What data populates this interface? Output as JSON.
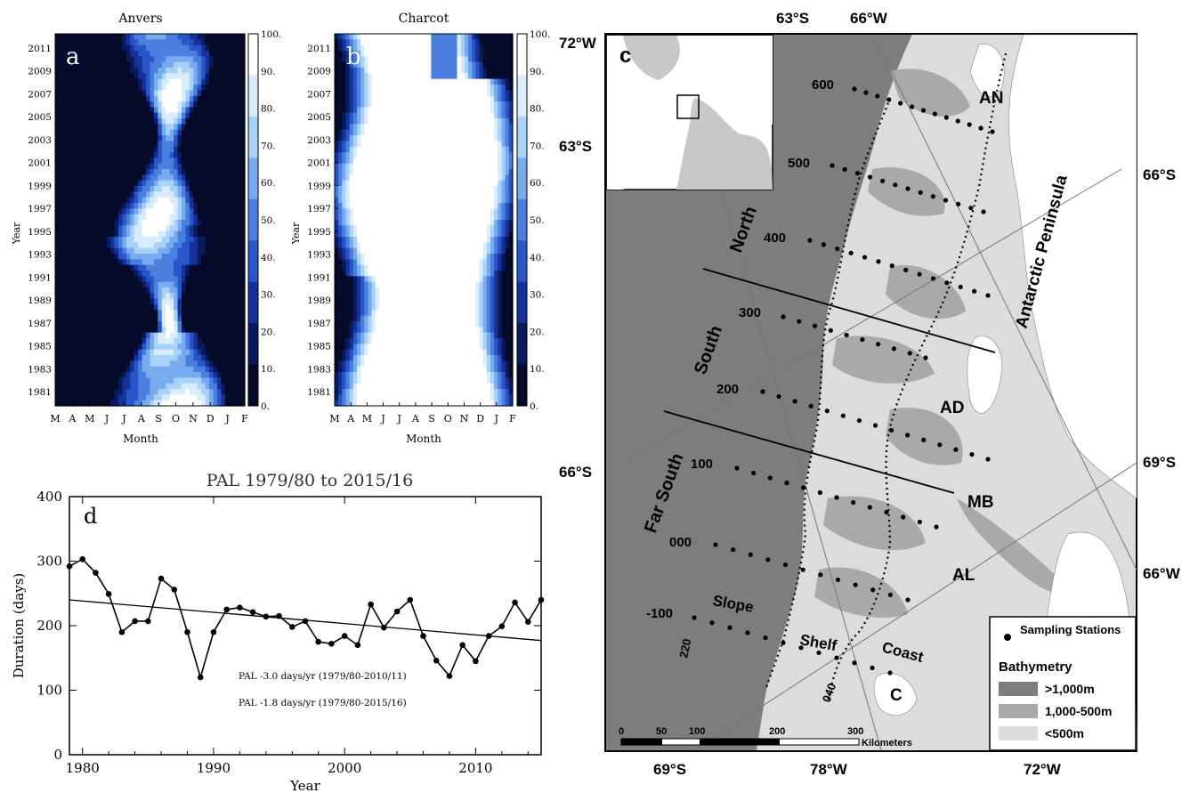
{
  "panels": {
    "a": {
      "letter": "a",
      "title": "Anvers",
      "xlabel": "Month",
      "ylabel": "Year",
      "months": [
        "M",
        "A",
        "M",
        "J",
        "J",
        "A",
        "S",
        "O",
        "N",
        "D",
        "J",
        "F"
      ],
      "years": [
        "2011",
        "2009",
        "2007",
        "2005",
        "2003",
        "2001",
        "1999",
        "1997",
        "1995",
        "1993",
        "1991",
        "1989",
        "1987",
        "1985",
        "1983",
        "1981"
      ],
      "colorbar_ticks": [
        "100.",
        "90.",
        "80.",
        "70.",
        "60.",
        "50.",
        "40.",
        "30.",
        "20.",
        "10.",
        "0."
      ]
    },
    "b": {
      "letter": "b",
      "title": "Charcot",
      "xlabel": "Month",
      "ylabel": "Year",
      "months": [
        "M",
        "A",
        "M",
        "J",
        "J",
        "A",
        "S",
        "O",
        "N",
        "D",
        "J",
        "F"
      ],
      "years": [
        "2011",
        "2009",
        "2007",
        "2005",
        "2003",
        "2001",
        "1999",
        "1997",
        "1995",
        "1993",
        "1991",
        "1989",
        "1987",
        "1985",
        "1983",
        "1981"
      ],
      "colorbar_ticks": [
        "100.",
        "90.",
        "80.",
        "70.",
        "60.",
        "50.",
        "40.",
        "30.",
        "20.",
        "10.",
        "0."
      ]
    },
    "c": {
      "letter": "c",
      "lat_labels": [
        "63°S",
        "66°S",
        "69°S"
      ],
      "lon_labels": [
        "66°W",
        "72°W",
        "78°W"
      ],
      "edge_labels": {
        "top_left": "63°S",
        "top_right": "66°W",
        "left_upper_lon": "72°W",
        "left_upper_lat": "63°S",
        "left_lower_lat": "66°S",
        "right_upper_lat": "66°S",
        "right_lower_lat": "69°S",
        "right_lower_lon": "66°W",
        "bottom_1": "69°S",
        "bottom_2": "78°W",
        "bottom_3": "72°W"
      },
      "grid_lines": [
        "600",
        "500",
        "400",
        "300",
        "200",
        "100",
        "000",
        "-100"
      ],
      "regions": [
        "North",
        "South",
        "Far South"
      ],
      "zones": [
        "Slope",
        "Shelf",
        "Coast"
      ],
      "places": [
        "AN",
        "AD",
        "MB",
        "AL",
        "C"
      ],
      "peninsula_label": "Antarctic Peninsula",
      "contour_labels": [
        "220",
        "040"
      ],
      "scale_ticks": [
        "0",
        "50",
        "100",
        "200",
        "300"
      ],
      "scale_unit": "Kilometers",
      "legend": {
        "sampling_label": "Sampling Stations",
        "bathymetry_title": "Bathymetry",
        "items": [
          {
            "label": ">1,000m",
            "color": "#7d7d7d"
          },
          {
            "label": "1,000-500m",
            "color": "#a9a9a9"
          },
          {
            "label": "<500m",
            "color": "#dcdcdc"
          }
        ]
      }
    }
  },
  "chart_data": [
    {
      "type": "heatmap",
      "title": "Anvers",
      "xlabel": "Month",
      "ylabel": "Year",
      "x": [
        "M",
        "A",
        "M",
        "J",
        "J",
        "A",
        "S",
        "O",
        "N",
        "D",
        "J",
        "F"
      ],
      "y_range": [
        1979,
        2012
      ],
      "z_range": [
        0,
        100
      ],
      "colorbar_ticks": [
        100,
        90,
        80,
        70,
        60,
        50,
        40,
        30,
        20,
        10,
        0
      ],
      "colors": [
        "#050a2a",
        "#0a1a5e",
        "#14329a",
        "#2856c8",
        "#4a7fe0",
        "#78aaf0",
        "#a8d2f8",
        "#d8ecfc",
        "#ffffff"
      ]
    },
    {
      "type": "heatmap",
      "title": "Charcot",
      "xlabel": "Month",
      "ylabel": "Year",
      "x": [
        "M",
        "A",
        "M",
        "J",
        "J",
        "A",
        "S",
        "O",
        "N",
        "D",
        "J",
        "F"
      ],
      "y_range": [
        1979,
        2012
      ],
      "z_range": [
        0,
        100
      ],
      "colorbar_ticks": [
        100,
        90,
        80,
        70,
        60,
        50,
        40,
        30,
        20,
        10,
        0
      ]
    },
    {
      "type": "line",
      "title": "PAL 1979/80 to 2015/16",
      "xlabel": "Year",
      "ylabel": "Duration (days)",
      "xlim": [
        1979,
        2015
      ],
      "ylim": [
        0,
        400
      ],
      "xticks": [
        1980,
        1990,
        2000,
        2010
      ],
      "yticks": [
        0,
        100,
        200,
        300,
        400
      ],
      "x": [
        1979,
        1980,
        1981,
        1982,
        1983,
        1984,
        1985,
        1986,
        1987,
        1988,
        1989,
        1990,
        1991,
        1992,
        1993,
        1994,
        1995,
        1996,
        1997,
        1998,
        1999,
        2000,
        2001,
        2002,
        2003,
        2004,
        2005,
        2006,
        2007,
        2008,
        2009,
        2010,
        2011,
        2012,
        2013,
        2014,
        2015
      ],
      "values": [
        292,
        303,
        282,
        249,
        190,
        207,
        207,
        273,
        256,
        190,
        120,
        190,
        225,
        228,
        221,
        214,
        215,
        198,
        207,
        175,
        172,
        184,
        170,
        233,
        197,
        222,
        240,
        184,
        146,
        122,
        170,
        145,
        184,
        199,
        236,
        206,
        240
      ],
      "trend": {
        "x": [
          1979,
          2015
        ],
        "y": [
          240,
          177
        ]
      },
      "annotations": [
        "PAL -3.0 days/yr (1979/80-2010/11)",
        "PAL -1.8 days/yr (1979/80-2015/16)"
      ],
      "panel_letter": "d"
    }
  ]
}
